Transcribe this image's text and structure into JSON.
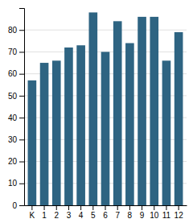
{
  "chart_data": {
    "type": "bar",
    "categories": [
      "K",
      "1",
      "2",
      "3",
      "4",
      "5",
      "6",
      "7",
      "8",
      "9",
      "10",
      "11",
      "12"
    ],
    "values": [
      57,
      65,
      66,
      72,
      73,
      88,
      70,
      84,
      74,
      86,
      86,
      66,
      79
    ],
    "color": "#2e6482",
    "ylim": [
      0,
      90
    ],
    "yticks": [
      0,
      10,
      20,
      30,
      40,
      50,
      60,
      70,
      80
    ],
    "grid": true
  }
}
